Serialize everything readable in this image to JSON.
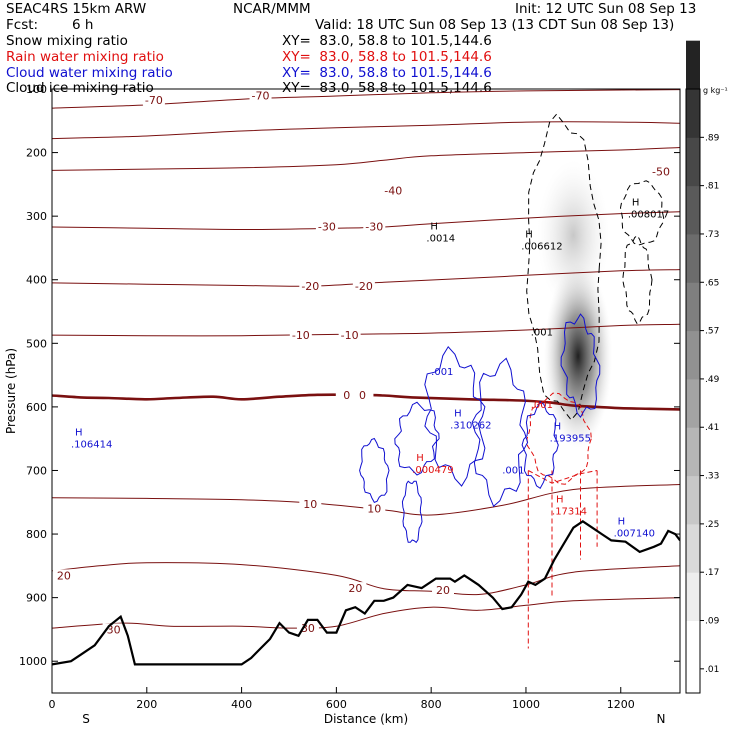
{
  "header": {
    "model": "SEAC4RS 15km ARW",
    "center": "NCAR/MMM",
    "init": "Init: 12 UTC Sun 08 Sep 13",
    "fcst_label": "Fcst:",
    "fcst_value": "6 h",
    "valid": "Valid: 18 UTC Sun 08 Sep 13 (13 CDT Sun 08 Sep 13)"
  },
  "fields": [
    {
      "name": "Snow mixing ratio",
      "xy": "XY=  83.0, 58.8 to 101.5,144.6",
      "color": "#000000"
    },
    {
      "name": "Rain water mixing ratio",
      "xy": "XY=  83.0, 58.8 to 101.5,144.6",
      "color": "#e01010"
    },
    {
      "name": "Cloud water mixing ratio",
      "xy": "XY=  83.0, 58.8 to 101.5,144.6",
      "color": "#1010d0"
    },
    {
      "name": "Cloud ice mixing ratio",
      "xy": "XY=  83.0, 58.8 to 101.5,144.6",
      "color": "#000000"
    }
  ],
  "colorbar": {
    "unit": "g kg⁻¹",
    "labels": [
      ".01",
      ".09",
      ".17",
      ".25",
      ".33",
      ".41",
      ".49",
      ".57",
      ".65",
      ".73",
      ".81",
      ".89"
    ]
  },
  "chart_data": {
    "type": "contour",
    "xlabel": "Distance (km)",
    "ylabel": "Pressure (hPa)",
    "xlim": [
      0,
      1325
    ],
    "ylim": [
      1050,
      100
    ],
    "xticks": [
      0,
      200,
      400,
      600,
      800,
      1000,
      1200
    ],
    "yticks": [
      100,
      200,
      300,
      400,
      500,
      600,
      700,
      800,
      900,
      1000
    ],
    "left_end": "S",
    "right_end": "N",
    "terrain": [
      [
        0,
        1005
      ],
      [
        40,
        1000
      ],
      [
        60,
        990
      ],
      [
        90,
        975
      ],
      [
        120,
        945
      ],
      [
        145,
        930
      ],
      [
        160,
        960
      ],
      [
        175,
        1005
      ],
      [
        200,
        1005
      ],
      [
        300,
        1005
      ],
      [
        400,
        1005
      ],
      [
        420,
        995
      ],
      [
        440,
        980
      ],
      [
        460,
        965
      ],
      [
        480,
        940
      ],
      [
        500,
        955
      ],
      [
        520,
        960
      ],
      [
        540,
        935
      ],
      [
        560,
        935
      ],
      [
        580,
        955
      ],
      [
        600,
        955
      ],
      [
        620,
        920
      ],
      [
        640,
        915
      ],
      [
        660,
        925
      ],
      [
        680,
        905
      ],
      [
        700,
        905
      ],
      [
        720,
        900
      ],
      [
        750,
        880
      ],
      [
        780,
        885
      ],
      [
        810,
        870
      ],
      [
        840,
        870
      ],
      [
        850,
        875
      ],
      [
        870,
        865
      ],
      [
        880,
        870
      ],
      [
        900,
        880
      ],
      [
        930,
        900
      ],
      [
        950,
        918
      ],
      [
        970,
        915
      ],
      [
        990,
        895
      ],
      [
        1005,
        875
      ],
      [
        1020,
        880
      ],
      [
        1040,
        870
      ],
      [
        1060,
        840
      ],
      [
        1080,
        815
      ],
      [
        1100,
        790
      ],
      [
        1120,
        780
      ],
      [
        1140,
        790
      ],
      [
        1160,
        800
      ],
      [
        1180,
        810
      ],
      [
        1210,
        812
      ],
      [
        1240,
        828
      ],
      [
        1270,
        820
      ],
      [
        1285,
        815
      ],
      [
        1300,
        795
      ],
      [
        1315,
        800
      ],
      [
        1325,
        810
      ]
    ],
    "temperature_contours": [
      {
        "label": "-70",
        "labels_at": [
          [
            215,
            117
          ],
          [
            440,
            110
          ]
        ],
        "points": [
          [
            0,
            130
          ],
          [
            200,
            125
          ],
          [
            400,
            116
          ],
          [
            600,
            111
          ],
          [
            800,
            106
          ],
          [
            1000,
            103
          ],
          [
            1325,
            101
          ]
        ]
      },
      {
        "label": "-50",
        "labels_at": [
          [
            1285,
            230
          ]
        ],
        "points": [
          [
            0,
            178
          ],
          [
            200,
            174
          ],
          [
            400,
            166
          ],
          [
            600,
            161
          ],
          [
            800,
            157
          ],
          [
            1000,
            152
          ],
          [
            1200,
            152
          ],
          [
            1325,
            154
          ]
        ]
      },
      {
        "label": "-40",
        "labels_at": [
          [
            720,
            260
          ]
        ],
        "points": [
          [
            0,
            228
          ],
          [
            200,
            226
          ],
          [
            400,
            224
          ],
          [
            600,
            219
          ],
          [
            700,
            212
          ],
          [
            800,
            205
          ],
          [
            1000,
            200
          ],
          [
            1200,
            196
          ],
          [
            1325,
            192
          ]
        ]
      },
      {
        "label": "-30",
        "labels_at": [
          [
            580,
            316
          ],
          [
            680,
            316
          ]
        ],
        "points": [
          [
            0,
            317
          ],
          [
            200,
            319
          ],
          [
            400,
            321
          ],
          [
            600,
            319
          ],
          [
            700,
            317
          ],
          [
            800,
            312
          ],
          [
            1000,
            303
          ],
          [
            1200,
            296
          ],
          [
            1325,
            293
          ]
        ]
      },
      {
        "label": "-20",
        "labels_at": [
          [
            545,
            410
          ],
          [
            658,
            410
          ]
        ],
        "points": [
          [
            0,
            405
          ],
          [
            200,
            407
          ],
          [
            400,
            409
          ],
          [
            545,
            410
          ],
          [
            700,
            404
          ],
          [
            900,
            397
          ],
          [
            1000,
            393
          ],
          [
            1200,
            386
          ],
          [
            1325,
            384
          ]
        ]
      },
      {
        "label": "-10",
        "labels_at": [
          [
            525,
            487
          ],
          [
            628,
            487
          ]
        ],
        "points": [
          [
            0,
            487
          ],
          [
            200,
            488
          ],
          [
            400,
            488
          ],
          [
            600,
            486
          ],
          [
            800,
            484
          ],
          [
            1000,
            479
          ],
          [
            1200,
            472
          ],
          [
            1325,
            470
          ]
        ]
      },
      {
        "label": "0",
        "labels_at": [
          [
            622,
            581
          ],
          [
            655,
            581
          ]
        ],
        "points": [
          [
            0,
            582
          ],
          [
            60,
            585
          ],
          [
            120,
            586
          ],
          [
            200,
            588
          ],
          [
            260,
            586
          ],
          [
            340,
            584
          ],
          [
            400,
            588
          ],
          [
            480,
            584
          ],
          [
            560,
            581
          ],
          [
            640,
            581
          ],
          [
            700,
            582
          ],
          [
            760,
            585
          ],
          [
            880,
            588
          ],
          [
            990,
            590
          ],
          [
            1050,
            593
          ],
          [
            1100,
            598
          ],
          [
            1150,
            600
          ],
          [
            1200,
            602
          ],
          [
            1260,
            603
          ],
          [
            1325,
            604
          ]
        ]
      },
      {
        "label": "10",
        "labels_at": [
          [
            545,
            753
          ],
          [
            680,
            760
          ]
        ],
        "points": [
          [
            0,
            743
          ],
          [
            200,
            744
          ],
          [
            400,
            746
          ],
          [
            545,
            751
          ],
          [
            700,
            762
          ],
          [
            800,
            770
          ],
          [
            950,
            755
          ],
          [
            1100,
            730
          ],
          [
            1325,
            722
          ]
        ]
      },
      {
        "label": "20",
        "labels_at": [
          [
            25,
            865
          ],
          [
            640,
            885
          ],
          [
            825,
            888
          ]
        ],
        "points": [
          [
            0,
            858
          ],
          [
            100,
            850
          ],
          [
            200,
            845
          ],
          [
            400,
            848
          ],
          [
            600,
            865
          ],
          [
            700,
            886
          ],
          [
            800,
            890
          ],
          [
            900,
            895
          ],
          [
            1000,
            880
          ],
          [
            1100,
            860
          ],
          [
            1325,
            850
          ]
        ]
      },
      {
        "label": "30",
        "labels_at": [
          [
            130,
            950
          ],
          [
            540,
            948
          ]
        ],
        "points": [
          [
            0,
            948
          ],
          [
            150,
            940
          ],
          [
            250,
            945
          ],
          [
            400,
            945
          ],
          [
            500,
            948
          ],
          [
            600,
            945
          ],
          [
            700,
            925
          ],
          [
            800,
            915
          ],
          [
            900,
            920
          ],
          [
            1000,
            912
          ],
          [
            1100,
            905
          ],
          [
            1325,
            900
          ]
        ]
      }
    ],
    "cloud_water_maxima": [
      {
        "label": "H",
        "value": ".106414",
        "x": 40,
        "y": 650
      },
      {
        "label": "H",
        "value": ".310262",
        "x": 840,
        "y": 620
      },
      {
        "label": "H",
        "value": ".193955",
        "x": 1050,
        "y": 640
      },
      {
        "label": "H",
        "value": ".007140",
        "x": 1185,
        "y": 790
      }
    ],
    "cloud_water_labels": [
      {
        "value": ".001",
        "x": 800,
        "y": 550
      },
      {
        "value": ".001",
        "x": 950,
        "y": 705
      }
    ],
    "rain_maxima": [
      {
        "label": "H",
        "value": ".000479",
        "x": 760,
        "y": 690
      },
      {
        "label": "H",
        "value": ".17314",
        "x": 1055,
        "y": 755
      }
    ],
    "rain_labels": [
      {
        "value": ".001",
        "x": 1010,
        "y": 602
      }
    ],
    "ice_maxima": [
      {
        "label": "H",
        "value": ".0014",
        "x": 790,
        "y": 326
      },
      {
        "label": "H",
        "value": ".006612",
        "x": 990,
        "y": 338
      },
      {
        "label": "H",
        "value": ".008017",
        "x": 1215,
        "y": 288
      }
    ],
    "ice_labels": [
      {
        "value": ".001",
        "x": 1010,
        "y": 488
      }
    ]
  }
}
